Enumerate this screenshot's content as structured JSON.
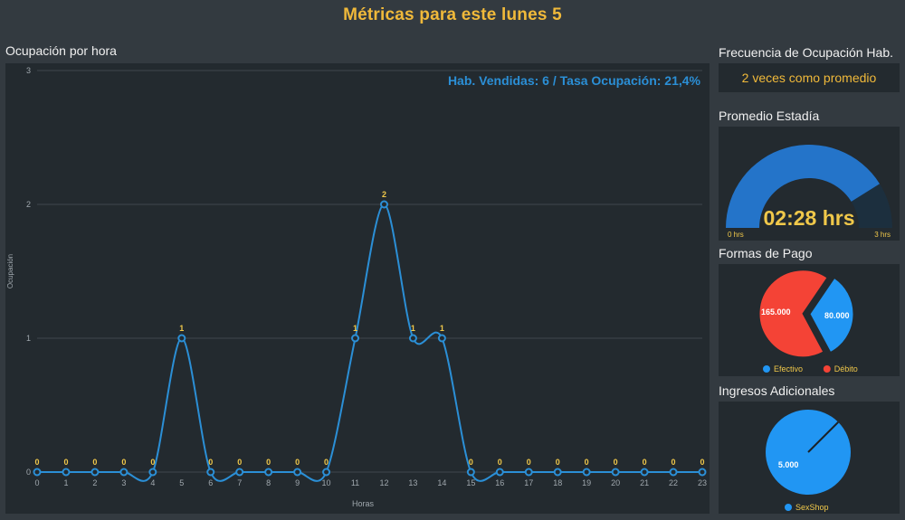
{
  "page": {
    "title": "Métricas para este lunes 5"
  },
  "occupancy": {
    "section_title": "Ocupación por hora",
    "summary": "Hab. Vendidas: 6 / Tasa Ocupación: 21,4%",
    "colors": {
      "line": "#2b8fd6",
      "label": "#f0c84a",
      "grid": "#3f474d"
    }
  },
  "frequency": {
    "section_title": "Frecuencia de Ocupación Hab.",
    "value": "2 veces como promedio"
  },
  "stay": {
    "section_title": "Promedio Estadía",
    "value": "02:28 hrs",
    "min_label": "0 hrs",
    "max_label": "3 hrs",
    "fraction": 0.822,
    "colors": {
      "fill": "#2474c9",
      "track": "#1c2f3e",
      "text": "#f0c84a"
    }
  },
  "payments": {
    "section_title": "Formas de Pago",
    "slices": [
      {
        "name": "Efectivo",
        "value": 80000,
        "label": "80.000",
        "color": "#2196f3"
      },
      {
        "name": "Débito",
        "value": 165000,
        "label": "165.000",
        "color": "#f44336"
      }
    ]
  },
  "extra_income": {
    "section_title": "Ingresos Adicionales",
    "slices": [
      {
        "name": "SexShop",
        "value": 5000,
        "label": "5.000",
        "color": "#2196f3"
      }
    ]
  },
  "chart_data": [
    {
      "type": "line",
      "title": "Ocupación por hora",
      "xlabel": "Horas",
      "ylabel": "Ocupación",
      "x": [
        0,
        1,
        2,
        3,
        4,
        5,
        6,
        7,
        8,
        9,
        10,
        11,
        12,
        13,
        14,
        15,
        16,
        17,
        18,
        19,
        20,
        21,
        22,
        23
      ],
      "values": [
        0,
        0,
        0,
        0,
        0,
        1,
        0,
        0,
        0,
        0,
        0,
        1,
        2,
        1,
        1,
        0,
        0,
        0,
        0,
        0,
        0,
        0,
        0,
        0
      ],
      "ylim": [
        0,
        3
      ],
      "yticks": [
        0,
        1,
        2,
        3
      ],
      "grid": true
    },
    {
      "type": "pie",
      "title": "Formas de Pago",
      "categories": [
        "Efectivo",
        "Débito"
      ],
      "values": [
        80000,
        165000
      ],
      "legend": "bottom"
    },
    {
      "type": "pie",
      "title": "Ingresos Adicionales",
      "categories": [
        "SexShop"
      ],
      "values": [
        5000
      ],
      "legend": "bottom"
    }
  ]
}
